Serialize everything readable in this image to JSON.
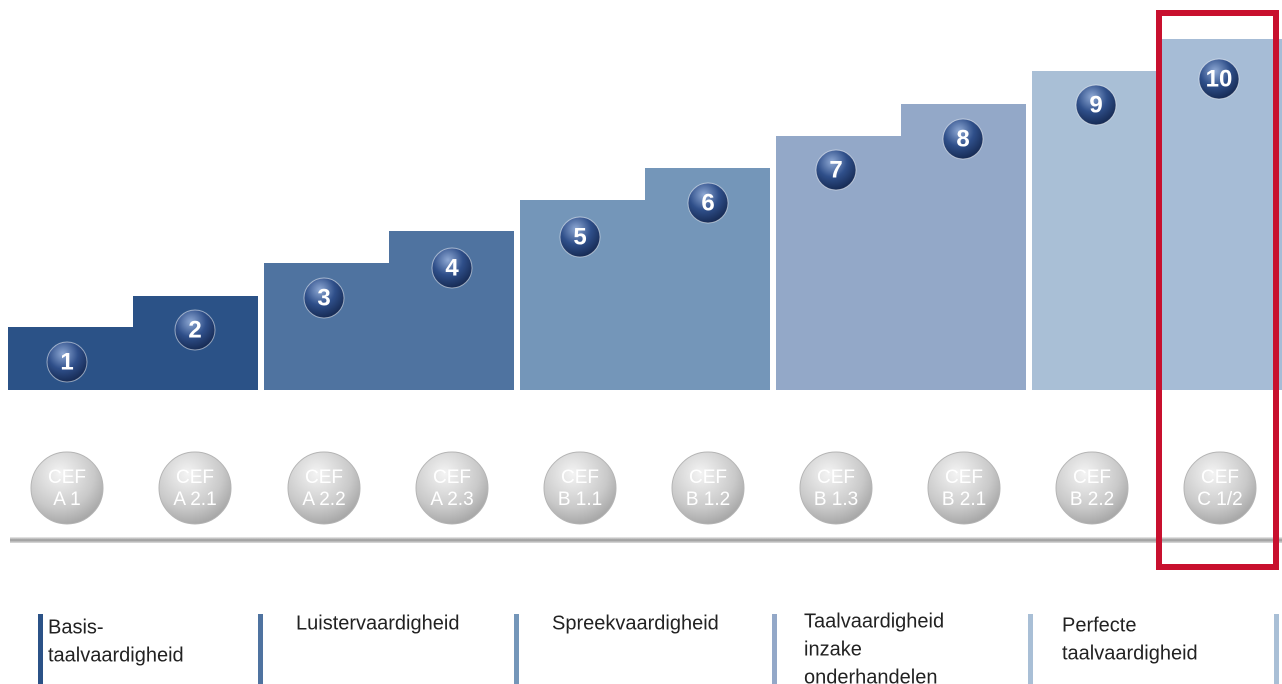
{
  "levels": [
    "1",
    "2",
    "3",
    "4",
    "5",
    "6",
    "7",
    "8",
    "9",
    "10"
  ],
  "cef": [
    {
      "top": "CEF",
      "bottom": "A 1"
    },
    {
      "top": "CEF",
      "bottom": "A 2.1"
    },
    {
      "top": "CEF",
      "bottom": "A 2.2"
    },
    {
      "top": "CEF",
      "bottom": "A 2.3"
    },
    {
      "top": "CEF",
      "bottom": "B 1.1"
    },
    {
      "top": "CEF",
      "bottom": "B 1.2"
    },
    {
      "top": "CEF",
      "bottom": "B 1.3"
    },
    {
      "top": "CEF",
      "bottom": "B 2.1"
    },
    {
      "top": "CEF",
      "bottom": "B 2.2"
    },
    {
      "top": "CEF",
      "bottom": "C 1/2"
    }
  ],
  "categories": [
    {
      "lines": [
        "Basis-",
        "taalvaardigheid"
      ]
    },
    {
      "lines": [
        "Luistervaardigheid"
      ]
    },
    {
      "lines": [
        "Spreekvaardigheid"
      ]
    },
    {
      "lines": [
        "Taalvaardigheid",
        "inzake",
        "onderhandelen"
      ]
    },
    {
      "lines": [
        "Perfecte",
        "taalvaardigheid"
      ]
    }
  ]
}
